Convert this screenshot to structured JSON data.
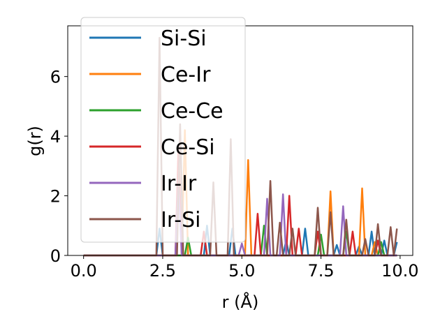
{
  "chart_data": {
    "type": "line",
    "xlabel": "r (Å)",
    "ylabel": "g(r)",
    "xlim": [
      -0.5,
      10.4
    ],
    "ylim": [
      0,
      7.7
    ],
    "xticks": [
      0.0,
      2.5,
      5.0,
      7.5,
      10.0
    ],
    "xtick_labels": [
      "0.0",
      "2.5",
      "5.0",
      "7.5",
      "10.0"
    ],
    "yticks": [
      0,
      2,
      4,
      6
    ],
    "ytick_labels": [
      "0",
      "2",
      "4",
      "6"
    ],
    "grid": false,
    "legend_position": "upper-left",
    "series": [
      {
        "name": "Si-Si",
        "color": "#1f77b4",
        "points": [
          [
            0,
            0
          ],
          [
            2.3,
            0
          ],
          [
            2.4,
            0.9
          ],
          [
            2.5,
            0
          ],
          [
            3.8,
            0
          ],
          [
            3.9,
            1.0
          ],
          [
            4.0,
            0
          ],
          [
            4.6,
            0
          ],
          [
            4.7,
            0.9
          ],
          [
            4.8,
            0
          ],
          [
            6.3,
            0
          ],
          [
            6.4,
            0.5
          ],
          [
            6.5,
            0
          ],
          [
            6.9,
            0
          ],
          [
            7.0,
            0.9
          ],
          [
            7.1,
            0
          ],
          [
            7.9,
            0
          ],
          [
            8.0,
            0.35
          ],
          [
            8.1,
            0
          ],
          [
            8.6,
            0
          ],
          [
            8.7,
            0.3
          ],
          [
            8.8,
            0
          ],
          [
            9.0,
            0
          ],
          [
            9.1,
            0.8
          ],
          [
            9.2,
            0
          ],
          [
            9.4,
            0
          ],
          [
            9.5,
            0.5
          ],
          [
            9.6,
            0
          ],
          [
            9.8,
            0
          ],
          [
            9.9,
            0.45
          ]
        ]
      },
      {
        "name": "Ce-Ir",
        "color": "#ff7f0e",
        "points": [
          [
            0,
            0
          ],
          [
            3.1,
            0
          ],
          [
            3.2,
            4.2
          ],
          [
            3.3,
            0
          ],
          [
            5.1,
            0
          ],
          [
            5.2,
            3.2
          ],
          [
            5.3,
            0
          ],
          [
            7.7,
            0
          ],
          [
            7.8,
            2.15
          ],
          [
            7.9,
            0
          ],
          [
            8.7,
            0
          ],
          [
            8.8,
            2.25
          ],
          [
            8.9,
            0
          ],
          [
            9.1,
            0
          ],
          [
            9.2,
            0.45
          ],
          [
            9.3,
            0
          ],
          [
            9.9,
            0
          ]
        ]
      },
      {
        "name": "Ce-Ce",
        "color": "#2ca02c",
        "points": [
          [
            0,
            0
          ],
          [
            3.2,
            0
          ],
          [
            3.3,
            0.6
          ],
          [
            3.4,
            0
          ],
          [
            5.6,
            0
          ],
          [
            5.7,
            1.0
          ],
          [
            5.8,
            0
          ],
          [
            7.4,
            0
          ],
          [
            7.5,
            0.7
          ],
          [
            7.6,
            0
          ],
          [
            8.2,
            0
          ],
          [
            8.3,
            0.8
          ],
          [
            8.4,
            0
          ],
          [
            9.3,
            0
          ],
          [
            9.4,
            0.45
          ],
          [
            9.5,
            0
          ],
          [
            9.9,
            0
          ]
        ]
      },
      {
        "name": "Ce-Si",
        "color": "#d62728",
        "points": [
          [
            0,
            0
          ],
          [
            2.9,
            0
          ],
          [
            3.0,
            3.7
          ],
          [
            3.1,
            0
          ],
          [
            3.7,
            0
          ],
          [
            3.8,
            0.8
          ],
          [
            3.9,
            0
          ],
          [
            5.4,
            0
          ],
          [
            5.5,
            1.4
          ],
          [
            5.6,
            0
          ],
          [
            6.4,
            0
          ],
          [
            6.5,
            2.0
          ],
          [
            6.6,
            0
          ],
          [
            6.7,
            0
          ],
          [
            6.8,
            0.9
          ],
          [
            6.9,
            0
          ],
          [
            7.3,
            0
          ],
          [
            7.4,
            0.8
          ],
          [
            7.5,
            0
          ],
          [
            8.4,
            0
          ],
          [
            8.5,
            0.8
          ],
          [
            8.6,
            0
          ],
          [
            9.2,
            0
          ],
          [
            9.3,
            0.5
          ],
          [
            9.4,
            0
          ],
          [
            9.9,
            0
          ]
        ]
      },
      {
        "name": "Ir-Ir",
        "color": "#9467bd",
        "points": [
          [
            0,
            0
          ],
          [
            2.9,
            0
          ],
          [
            3.0,
            2.4
          ],
          [
            3.1,
            0
          ],
          [
            4.9,
            0
          ],
          [
            5.0,
            0.4
          ],
          [
            5.1,
            0
          ],
          [
            5.7,
            0
          ],
          [
            5.8,
            1.9
          ],
          [
            5.9,
            0
          ],
          [
            6.2,
            0
          ],
          [
            6.3,
            2.05
          ],
          [
            6.4,
            0
          ],
          [
            8.1,
            0
          ],
          [
            8.2,
            1.65
          ],
          [
            8.3,
            0
          ],
          [
            9.9,
            0
          ]
        ]
      },
      {
        "name": "Ir-Si",
        "color": "#8c564b",
        "points": [
          [
            0,
            0
          ],
          [
            2.3,
            0
          ],
          [
            2.4,
            7.3
          ],
          [
            2.5,
            0
          ],
          [
            2.95,
            0
          ],
          [
            3.05,
            4.4
          ],
          [
            3.15,
            0
          ],
          [
            4.0,
            0
          ],
          [
            4.1,
            2.45
          ],
          [
            4.2,
            0
          ],
          [
            4.55,
            0
          ],
          [
            4.65,
            3.9
          ],
          [
            4.75,
            0
          ],
          [
            5.8,
            0
          ],
          [
            5.9,
            2.5
          ],
          [
            6.0,
            0
          ],
          [
            6.1,
            0
          ],
          [
            6.2,
            1.1
          ],
          [
            6.3,
            0
          ],
          [
            6.5,
            0
          ],
          [
            6.6,
            0.9
          ],
          [
            6.7,
            0
          ],
          [
            7.3,
            0
          ],
          [
            7.4,
            1.6
          ],
          [
            7.5,
            0
          ],
          [
            7.7,
            0
          ],
          [
            7.8,
            1.45
          ],
          [
            7.9,
            0
          ],
          [
            8.2,
            0
          ],
          [
            8.3,
            1.2
          ],
          [
            8.4,
            0
          ],
          [
            8.8,
            0
          ],
          [
            8.9,
            0.55
          ],
          [
            9.0,
            0
          ],
          [
            9.2,
            0
          ],
          [
            9.3,
            1.05
          ],
          [
            9.4,
            0
          ],
          [
            9.6,
            0
          ],
          [
            9.7,
            0.95
          ],
          [
            9.8,
            0
          ],
          [
            9.9,
            0.9
          ]
        ]
      }
    ]
  }
}
